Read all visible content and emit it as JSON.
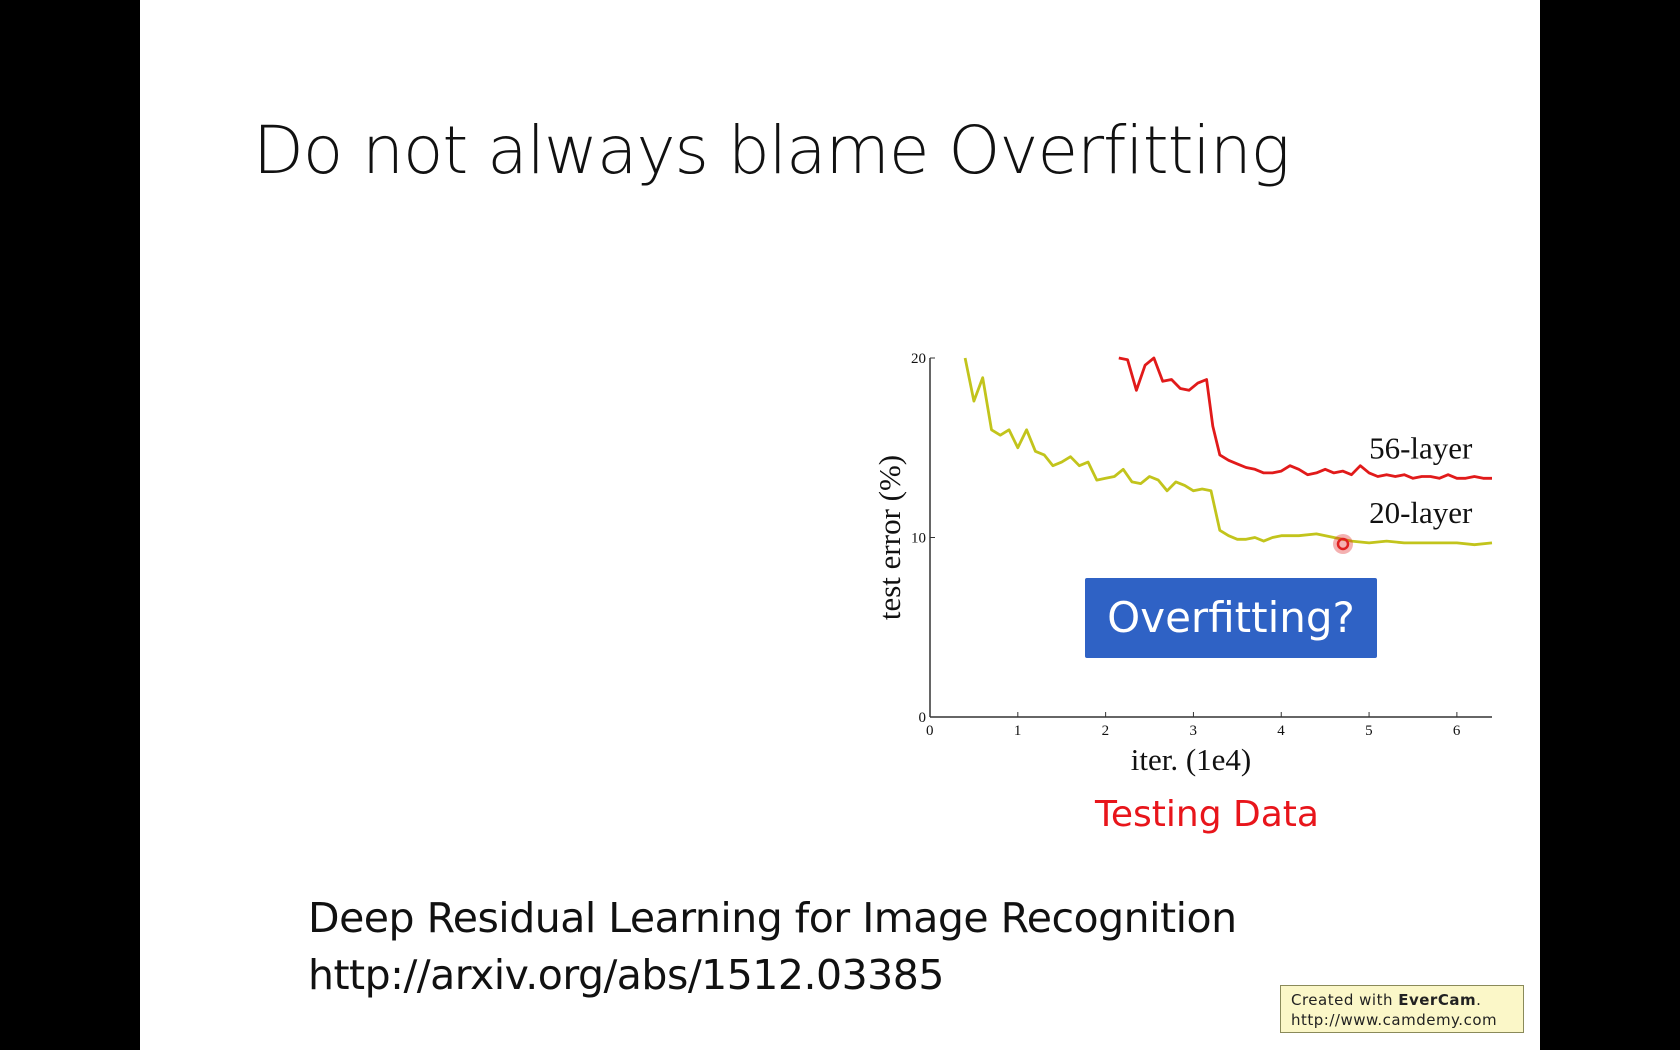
{
  "slide": {
    "title": "Do not always blame Overfitting",
    "reference_line1": "Deep Residual Learning for Image Recognition",
    "reference_line2": "http://arxiv.org/abs/1512.03385"
  },
  "watermark": {
    "prefix": "Created with ",
    "brand": "EverCam",
    "suffix": ".",
    "url": "http://www.camdemy.com"
  },
  "callout": {
    "label": "Overfitting?",
    "color": "#2f62c5"
  },
  "caption": {
    "text": "Testing Data",
    "color": "#e8151b"
  },
  "chart_data": {
    "type": "line",
    "xlabel": "iter. (1e4)",
    "ylabel": "test error (%)",
    "xlim": [
      0,
      6.4
    ],
    "ylim": [
      0,
      20
    ],
    "xticks": [
      0,
      1,
      2,
      3,
      4,
      5,
      6
    ],
    "yticks": [
      0,
      10,
      20
    ],
    "series": [
      {
        "name": "56-layer",
        "color": "#e11a1a",
        "x": [
          2.15,
          2.25,
          2.35,
          2.45,
          2.55,
          2.65,
          2.75,
          2.85,
          2.95,
          3.05,
          3.15,
          3.22,
          3.3,
          3.4,
          3.5,
          3.6,
          3.7,
          3.8,
          3.9,
          4.0,
          4.1,
          4.2,
          4.3,
          4.4,
          4.5,
          4.6,
          4.7,
          4.8,
          4.9,
          5.0,
          5.1,
          5.2,
          5.3,
          5.4,
          5.5,
          5.6,
          5.7,
          5.8,
          5.9,
          6.0,
          6.1,
          6.2,
          6.3,
          6.4
        ],
        "y": [
          20,
          19.9,
          18.2,
          19.6,
          20,
          18.7,
          18.8,
          18.3,
          18.2,
          18.6,
          18.8,
          16.2,
          14.6,
          14.3,
          14.1,
          13.9,
          13.8,
          13.6,
          13.6,
          13.7,
          14.0,
          13.8,
          13.5,
          13.6,
          13.8,
          13.6,
          13.7,
          13.5,
          14.0,
          13.6,
          13.4,
          13.5,
          13.4,
          13.5,
          13.3,
          13.4,
          13.4,
          13.3,
          13.5,
          13.3,
          13.3,
          13.4,
          13.3,
          13.3
        ]
      },
      {
        "name": "20-layer",
        "color": "#c2c41c",
        "x": [
          0.4,
          0.5,
          0.6,
          0.7,
          0.8,
          0.9,
          1.0,
          1.1,
          1.2,
          1.3,
          1.4,
          1.5,
          1.6,
          1.7,
          1.8,
          1.9,
          2.0,
          2.1,
          2.2,
          2.3,
          2.4,
          2.5,
          2.6,
          2.7,
          2.8,
          2.9,
          3.0,
          3.1,
          3.2,
          3.3,
          3.4,
          3.5,
          3.6,
          3.7,
          3.8,
          3.9,
          4.0,
          4.2,
          4.4,
          4.6,
          4.8,
          5.0,
          5.2,
          5.4,
          5.6,
          5.8,
          6.0,
          6.2,
          6.4
        ],
        "y": [
          20,
          17.6,
          18.9,
          16.0,
          15.7,
          16.0,
          15.0,
          16.0,
          14.8,
          14.6,
          14.0,
          14.2,
          14.5,
          14.0,
          14.2,
          13.2,
          13.3,
          13.4,
          13.8,
          13.1,
          13.0,
          13.4,
          13.2,
          12.6,
          13.1,
          12.9,
          12.6,
          12.7,
          12.6,
          10.4,
          10.1,
          9.9,
          9.9,
          10.0,
          9.8,
          10.0,
          10.1,
          10.1,
          10.2,
          10.0,
          9.8,
          9.7,
          9.8,
          9.7,
          9.7,
          9.7,
          9.7,
          9.6,
          9.7
        ]
      }
    ],
    "annotations": [
      {
        "text": "56-layer",
        "x": 5.0,
        "y": 14.4
      },
      {
        "text": "20-layer",
        "x": 5.0,
        "y": 10.8
      }
    ],
    "legend": "none",
    "grid": false
  },
  "cursor": {
    "color": "#e02020"
  }
}
